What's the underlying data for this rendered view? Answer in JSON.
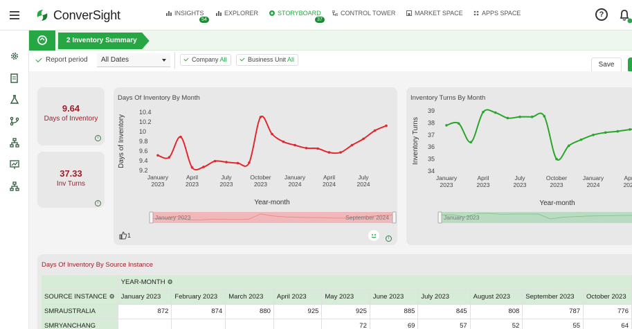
{
  "app": {
    "name": "ConverSight"
  },
  "nav": [
    {
      "label": "INSIGHTS",
      "badge": "54",
      "active": false
    },
    {
      "label": "EXPLORER",
      "badge": "",
      "active": false
    },
    {
      "label": "STORYBOARD",
      "badge": "37",
      "active": true
    },
    {
      "label": "CONTROL TOWER",
      "badge": "",
      "active": false
    },
    {
      "label": "MARKET SPACE",
      "badge": "",
      "active": false
    },
    {
      "label": "APPS SPACE",
      "badge": "",
      "active": false
    }
  ],
  "header": {
    "help_label": "?"
  },
  "storyboard": {
    "tab_label": "2 Inventory Summary"
  },
  "filters": {
    "report_period_label": "Report period",
    "report_period_value": "All Dates",
    "company_label": "Company",
    "company_value": "All",
    "business_unit_label": "Business Unit",
    "business_unit_value": "All",
    "save_label": "Save"
  },
  "kpis": [
    {
      "value": "9.64",
      "label": "Days of Inventory"
    },
    {
      "value": "37.33",
      "label": "Inv Turns"
    }
  ],
  "charts": {
    "days_title": "Days Of Inventory By Month",
    "turns_title": "Inventory Turns By Month",
    "likes": "1",
    "range_start": "January 2023",
    "range_end": "September 2024"
  },
  "chart_data": [
    {
      "type": "line",
      "title": "Days Of Inventory By Month",
      "xlabel": "Year-month",
      "ylabel": "Days of Inventory",
      "color": "#e0282e",
      "ylim": [
        9.2,
        10.4
      ],
      "yticks": [
        "10.4",
        "10.2",
        "10",
        "9.8",
        "9.6",
        "9.4",
        "9.2"
      ],
      "xticks": [
        {
          "label": [
            "January",
            "2023"
          ],
          "x": "2023-01"
        },
        {
          "label": [
            "April",
            "2023"
          ],
          "x": "2023-04"
        },
        {
          "label": [
            "July",
            "2023"
          ],
          "x": "2023-07"
        },
        {
          "label": [
            "October",
            "2023"
          ],
          "x": "2023-10"
        },
        {
          "label": [
            "January",
            "2024"
          ],
          "x": "2024-01"
        },
        {
          "label": [
            "April",
            "2024"
          ],
          "x": "2024-04"
        },
        {
          "label": [
            "July",
            "2024"
          ],
          "x": "2024-07"
        }
      ],
      "x": [
        "2023-01",
        "2023-02",
        "2023-03",
        "2023-04",
        "2023-05",
        "2023-06",
        "2023-07",
        "2023-08",
        "2023-09",
        "2023-10",
        "2023-11",
        "2023-12",
        "2024-01",
        "2024-02",
        "2024-03",
        "2024-04",
        "2024-05",
        "2024-06",
        "2024-07",
        "2024-08",
        "2024-09"
      ],
      "values": [
        9.51,
        9.47,
        9.89,
        9.26,
        9.27,
        9.39,
        9.37,
        9.35,
        9.36,
        10.3,
        9.95,
        9.79,
        9.72,
        9.66,
        9.65,
        9.57,
        9.57,
        9.72,
        9.85,
        10.02,
        10.12
      ]
    },
    {
      "type": "line",
      "title": "Inventory Turns By Month",
      "xlabel": "Year-month",
      "ylabel": "Inventory Turns",
      "color": "#2aa52a",
      "ylim": [
        34,
        39
      ],
      "yticks": [
        "39",
        "38",
        "37",
        "36",
        "35",
        "34"
      ],
      "xticks": [
        {
          "label": [
            "January",
            "2023"
          ],
          "x": "2023-01"
        },
        {
          "label": [
            "April",
            "2023"
          ],
          "x": "2023-04"
        },
        {
          "label": [
            "July",
            "2023"
          ],
          "x": "2023-07"
        },
        {
          "label": [
            "October",
            "2023"
          ],
          "x": "2023-10"
        },
        {
          "label": [
            "January",
            "2024"
          ],
          "x": "2024-01"
        },
        {
          "label": [
            "April",
            "2024"
          ],
          "x": "2024-04"
        }
      ],
      "x": [
        "2023-01",
        "2023-02",
        "2023-03",
        "2023-04",
        "2023-05",
        "2023-06",
        "2023-07",
        "2023-08",
        "2023-09",
        "2023-10",
        "2023-11",
        "2023-12",
        "2024-01",
        "2024-02",
        "2024-03",
        "2024-04",
        "2024-05",
        "2024-06"
      ],
      "values": [
        37.8,
        37.95,
        36.4,
        38.9,
        38.85,
        38.4,
        38.5,
        38.5,
        38.55,
        35.0,
        36.1,
        36.6,
        37.0,
        37.2,
        37.3,
        37.45,
        37.55,
        37.6
      ]
    }
  ],
  "table": {
    "title": "Days Of Inventory By Source Instance",
    "col_group": "YEAR-MONTH",
    "row_header": "SOURCE INSTANCE",
    "columns": [
      "January 2023",
      "February 2023",
      "March 2023",
      "April 2023",
      "May 2023",
      "June 2023",
      "July 2023",
      "August 2023",
      "September 2023",
      "October 2023"
    ],
    "rows": [
      {
        "name": "SMRAUSTRALIA",
        "values": [
          "872",
          "874",
          "880",
          "925",
          "925",
          "885",
          "845",
          "808",
          "787",
          "776"
        ]
      },
      {
        "name": "SMRYANCHANG",
        "values": [
          "",
          "",
          "",
          "",
          "72",
          "69",
          "57",
          "52",
          "55",
          "64"
        ]
      }
    ]
  }
}
